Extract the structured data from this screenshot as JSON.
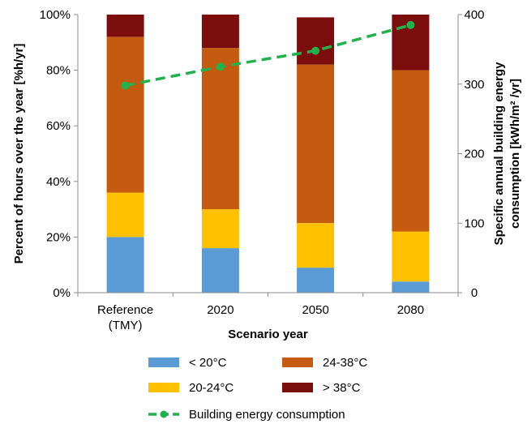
{
  "chart_data": {
    "type": "bar",
    "stacked": true,
    "categories": [
      [
        "Reference",
        "(TMY)"
      ],
      [
        "2020"
      ],
      [
        "2050"
      ],
      [
        "2080"
      ]
    ],
    "xlabel": "Scenario year",
    "ylabel": "Percent of hours over the year [%h/yr]",
    "y2label": [
      "Specific annual building energy",
      "consumption [kWh/m² /yr]"
    ],
    "ylim": [
      0,
      100
    ],
    "y2lim": [
      0,
      400
    ],
    "yticks": [
      "0%",
      "20%",
      "40%",
      "60%",
      "80%",
      "100%"
    ],
    "y2ticks": [
      "0",
      "100",
      "200",
      "300",
      "400"
    ],
    "grid": false,
    "legend_position": "bottom",
    "series": [
      {
        "name": "< 20°C",
        "color": "#5b9bd5",
        "values": [
          20,
          16,
          9,
          4
        ]
      },
      {
        "name": "20-24°C",
        "color": "#ffc000",
        "values": [
          16,
          14,
          16,
          18
        ]
      },
      {
        "name": "24-38°C",
        "color": "#c55a11",
        "values": [
          56,
          58,
          57,
          58
        ]
      },
      {
        "name": "> 38°C",
        "color": "#7b0d0d",
        "values": [
          8,
          12,
          17,
          20
        ]
      }
    ],
    "line_series": {
      "name": "Building energy consumption",
      "color": "#22b14c",
      "axis": "secondary",
      "values": [
        298,
        325,
        348,
        385
      ]
    }
  }
}
